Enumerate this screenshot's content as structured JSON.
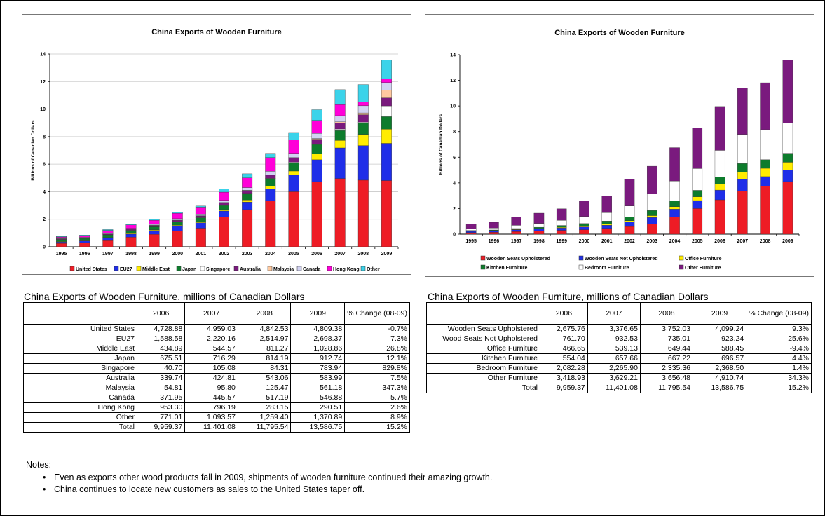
{
  "left_chart": {
    "title": "China Exports of Wooden Furniture",
    "ylabel": "Billions of Canadian Dollars"
  },
  "right_chart": {
    "title": "China Exports of Wooden Furniture",
    "ylabel": "Billions of Canadian Dollars"
  },
  "left_table": {
    "title": "China Exports of Wooden Furniture, millions of Canadian Dollars",
    "headers": [
      "2006",
      "2007",
      "2008",
      "2009",
      "% Change (08-09)"
    ],
    "rows": [
      {
        "label": "United States",
        "values": [
          "4,728.88",
          "4,959.03",
          "4,842.53",
          "4,809.38",
          "-0.7%"
        ]
      },
      {
        "label": "EU27",
        "values": [
          "1,588.58",
          "2,220.16",
          "2,514.97",
          "2,698.37",
          "7.3%"
        ]
      },
      {
        "label": "Middle East",
        "values": [
          "434.89",
          "544.57",
          "811.27",
          "1,028.86",
          "26.8%"
        ]
      },
      {
        "label": "Japan",
        "values": [
          "675.51",
          "716.29",
          "814.19",
          "912.74",
          "12.1%"
        ]
      },
      {
        "label": "Singapore",
        "values": [
          "40.70",
          "105.08",
          "84.31",
          "783.94",
          "829.8%"
        ]
      },
      {
        "label": "Australia",
        "values": [
          "339.74",
          "424.81",
          "543.06",
          "583.99",
          "7.5%"
        ]
      },
      {
        "label": "Malaysia",
        "values": [
          "54.81",
          "95.80",
          "125.47",
          "561.18",
          "347.3%"
        ]
      },
      {
        "label": "Canada",
        "values": [
          "371.95",
          "445.57",
          "517.19",
          "546.88",
          "5.7%"
        ]
      },
      {
        "label": "Hong Kong",
        "values": [
          "953.30",
          "796.19",
          "283.15",
          "290.51",
          "2.6%"
        ]
      },
      {
        "label": "Other",
        "values": [
          "771.01",
          "1,093.57",
          "1,259.40",
          "1,370.89",
          "8.9%"
        ]
      },
      {
        "label": "Total",
        "values": [
          "9,959.37",
          "11,401.08",
          "11,795.54",
          "13,586.75",
          "15.2%"
        ]
      }
    ]
  },
  "right_table": {
    "title": "China Exports of Wooden Furniture, millions of Canadian Dollars",
    "headers": [
      "2006",
      "2007",
      "2008",
      "2009",
      "% Change (08-09)"
    ],
    "rows": [
      {
        "label": "Wooden Seats Upholstered",
        "values": [
          "2,675.76",
          "3,376.65",
          "3,752.03",
          "4,099.24",
          "9.3%"
        ]
      },
      {
        "label": "Wood Seats Not Upholstered",
        "values": [
          "761.70",
          "932.53",
          "735.01",
          "923.24",
          "25.6%"
        ]
      },
      {
        "label": "Office Furniture",
        "values": [
          "466.65",
          "539.13",
          "649.44",
          "588.45",
          "-9.4%"
        ]
      },
      {
        "label": "Kitchen Furniture",
        "values": [
          "554.04",
          "657.66",
          "667.22",
          "696.57",
          "4.4%"
        ]
      },
      {
        "label": "Bedroom Furniture",
        "values": [
          "2,082.28",
          "2,265.90",
          "2,335.36",
          "2,368.50",
          "1.4%"
        ]
      },
      {
        "label": "Other Furniture",
        "values": [
          "3,418.93",
          "3,629.21",
          "3,656.48",
          "4,910.74",
          "34.3%"
        ]
      },
      {
        "label": "Total",
        "values": [
          "9,959.37",
          "11,401.08",
          "11,795.54",
          "13,586.75",
          "15.2%"
        ]
      }
    ]
  },
  "notes": {
    "heading": "Notes:",
    "items": [
      "Even as exports other wood products fall in 2009, shipments of wooden furniture continued their amazing growth.",
      "China continues to locate new customers as sales to the United States taper off."
    ]
  },
  "chart_data": [
    {
      "type": "bar",
      "stacked": true,
      "title": "China Exports of Wooden Furniture",
      "xlabel": "",
      "ylabel": "Billions of Canadian Dollars",
      "ylim": [
        0,
        14
      ],
      "yticks": [
        0,
        2,
        4,
        6,
        8,
        10,
        12,
        14
      ],
      "grid": true,
      "legend": "bottom",
      "categories": [
        "1995",
        "1996",
        "1997",
        "1998",
        "1999",
        "2000",
        "2001",
        "2002",
        "2003",
        "2004",
        "2005",
        "2006",
        "2007",
        "2008",
        "2009"
      ],
      "series": [
        {
          "name": "United States",
          "color": "#ee1c25",
          "values": [
            0.25,
            0.3,
            0.45,
            0.7,
            0.9,
            1.15,
            1.35,
            2.15,
            2.7,
            3.35,
            4.0,
            4.73,
            4.96,
            4.84,
            4.81
          ]
        },
        {
          "name": "EU27",
          "color": "#1f2ee8",
          "values": [
            0.1,
            0.12,
            0.18,
            0.22,
            0.28,
            0.35,
            0.4,
            0.45,
            0.55,
            0.85,
            1.2,
            1.59,
            2.22,
            2.51,
            2.7
          ]
        },
        {
          "name": "Middle East",
          "color": "#ffec00",
          "values": [
            0.03,
            0.03,
            0.04,
            0.05,
            0.05,
            0.06,
            0.07,
            0.1,
            0.15,
            0.2,
            0.3,
            0.43,
            0.54,
            0.81,
            1.03
          ]
        },
        {
          "name": "Japan",
          "color": "#0d7c2c",
          "values": [
            0.15,
            0.15,
            0.2,
            0.22,
            0.22,
            0.25,
            0.28,
            0.3,
            0.45,
            0.55,
            0.6,
            0.68,
            0.72,
            0.81,
            0.91
          ]
        },
        {
          "name": "Singapore",
          "color": "#ffffff",
          "values": [
            0.01,
            0.01,
            0.01,
            0.01,
            0.01,
            0.02,
            0.02,
            0.02,
            0.03,
            0.03,
            0.04,
            0.04,
            0.11,
            0.08,
            0.78
          ]
        },
        {
          "name": "Australia",
          "color": "#7a1a7e",
          "values": [
            0.03,
            0.04,
            0.05,
            0.07,
            0.09,
            0.1,
            0.12,
            0.18,
            0.2,
            0.22,
            0.3,
            0.34,
            0.42,
            0.54,
            0.58
          ]
        },
        {
          "name": "Malaysia",
          "color": "#ffc9a0",
          "values": [
            0.01,
            0.01,
            0.01,
            0.01,
            0.01,
            0.01,
            0.02,
            0.02,
            0.02,
            0.03,
            0.04,
            0.05,
            0.1,
            0.13,
            0.56
          ]
        },
        {
          "name": "Canada",
          "color": "#d2d2f2",
          "values": [
            0.03,
            0.03,
            0.05,
            0.06,
            0.07,
            0.1,
            0.12,
            0.15,
            0.2,
            0.25,
            0.3,
            0.37,
            0.45,
            0.52,
            0.55
          ]
        },
        {
          "name": "Hong Kong",
          "color": "#ff00d8",
          "values": [
            0.1,
            0.12,
            0.2,
            0.25,
            0.3,
            0.4,
            0.5,
            0.6,
            0.7,
            1.0,
            1.0,
            0.95,
            0.8,
            0.28,
            0.29
          ]
        },
        {
          "name": "Other",
          "color": "#3bd3ea",
          "values": [
            0.04,
            0.04,
            0.06,
            0.07,
            0.08,
            0.08,
            0.08,
            0.23,
            0.3,
            0.3,
            0.52,
            0.77,
            1.09,
            1.26,
            1.37
          ]
        }
      ]
    },
    {
      "type": "bar",
      "stacked": true,
      "title": "China Exports of Wooden Furniture",
      "xlabel": "",
      "ylabel": "Billions of Canadian Dollars",
      "ylim": [
        0,
        14
      ],
      "yticks": [
        0,
        2,
        4,
        6,
        8,
        10,
        12,
        14
      ],
      "grid": false,
      "legend": "bottom",
      "categories": [
        "1995",
        "1996",
        "1997",
        "1998",
        "1999",
        "2000",
        "2001",
        "2002",
        "2003",
        "2004",
        "2005",
        "2006",
        "2007",
        "2008",
        "2009"
      ],
      "series": [
        {
          "name": "Wooden Seats Upholstered",
          "color": "#ee1c25",
          "values": [
            0.12,
            0.15,
            0.2,
            0.25,
            0.3,
            0.35,
            0.45,
            0.6,
            0.8,
            1.35,
            2.0,
            2.68,
            3.38,
            3.75,
            4.1
          ]
        },
        {
          "name": "Wooden Seats Not Upholstered",
          "color": "#1f2ee8",
          "values": [
            0.1,
            0.11,
            0.14,
            0.15,
            0.18,
            0.22,
            0.25,
            0.35,
            0.5,
            0.6,
            0.62,
            0.76,
            0.93,
            0.74,
            0.92
          ]
        },
        {
          "name": "Office Furniture",
          "color": "#ffec00",
          "values": [
            0.02,
            0.02,
            0.03,
            0.04,
            0.05,
            0.06,
            0.08,
            0.1,
            0.15,
            0.2,
            0.3,
            0.47,
            0.54,
            0.65,
            0.59
          ]
        },
        {
          "name": "Kitchen Furniture",
          "color": "#0d7c2c",
          "values": [
            0.05,
            0.05,
            0.07,
            0.1,
            0.15,
            0.2,
            0.25,
            0.3,
            0.4,
            0.45,
            0.5,
            0.55,
            0.66,
            0.67,
            0.7
          ]
        },
        {
          "name": "Bedroom Furniture",
          "color": "#ffffff",
          "values": [
            0.12,
            0.15,
            0.25,
            0.3,
            0.4,
            0.55,
            0.65,
            0.85,
            1.3,
            1.55,
            1.7,
            2.08,
            2.27,
            2.34,
            2.37
          ]
        },
        {
          "name": "Other Furniture",
          "color": "#7a1a7e",
          "values": [
            0.4,
            0.45,
            0.65,
            0.8,
            0.9,
            1.2,
            1.3,
            2.1,
            2.15,
            2.6,
            3.15,
            3.42,
            3.63,
            3.66,
            4.91
          ]
        }
      ]
    }
  ]
}
